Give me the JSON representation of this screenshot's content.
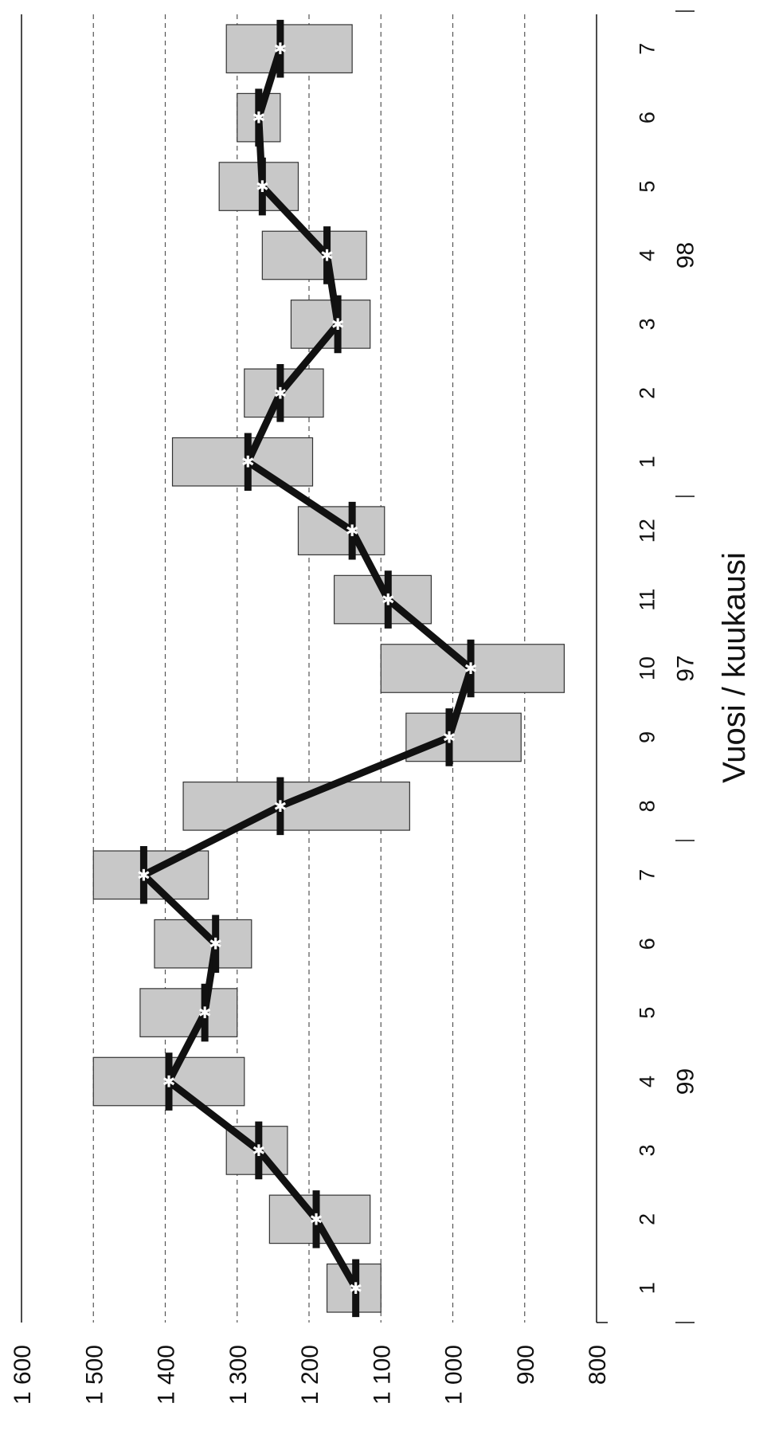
{
  "chart_data": {
    "type": "line",
    "subtype": "line-with-range-boxes",
    "orientation": "rotated-90-clockwise",
    "xlabel": "Vuosi / kuukausi",
    "ylabel": "",
    "ylim": [
      800,
      1600
    ],
    "yticks": [
      1600,
      1500,
      1400,
      1300,
      1200,
      1100,
      1000,
      900,
      800
    ],
    "ytick_labels": [
      "1 600",
      "1 500",
      "1 400",
      "1 300",
      "1 200",
      "1 100",
      "1 000",
      "900",
      "800"
    ],
    "grid": "dashed-horizontal",
    "legend": "none",
    "groups": [
      {
        "label": "98",
        "months": [
          "1",
          "2",
          "3",
          "4",
          "5",
          "6",
          "7"
        ]
      },
      {
        "label": "97",
        "months": [
          "8",
          "9",
          "10",
          "11",
          "12"
        ]
      },
      {
        "label": "99",
        "months": [
          "1",
          "2",
          "3",
          "4",
          "5",
          "6",
          "7"
        ]
      }
    ],
    "categories": [
      "7",
      "6",
      "5",
      "4",
      "3",
      "2",
      "1",
      "12",
      "11",
      "10",
      "9",
      "8",
      "7",
      "6",
      "5",
      "4",
      "3",
      "2",
      "1"
    ],
    "values": [
      1240,
      1270,
      1265,
      1175,
      1160,
      1240,
      1285,
      1140,
      1090,
      975,
      1005,
      1240,
      1430,
      1330,
      1345,
      1395,
      1270,
      1190,
      1135
    ],
    "range_low": [
      1140,
      1240,
      1215,
      1120,
      1115,
      1180,
      1195,
      1095,
      1030,
      845,
      905,
      1060,
      1340,
      1280,
      1300,
      1290,
      1230,
      1115,
      1100
    ],
    "range_high": [
      1315,
      1300,
      1325,
      1265,
      1225,
      1290,
      1390,
      1215,
      1165,
      1100,
      1065,
      1375,
      1500,
      1415,
      1435,
      1500,
      1315,
      1255,
      1175
    ],
    "colors": {
      "box_fill": "#c8c8c8",
      "box_stroke": "#333333",
      "line": "#111111",
      "grid": "#555555"
    }
  }
}
